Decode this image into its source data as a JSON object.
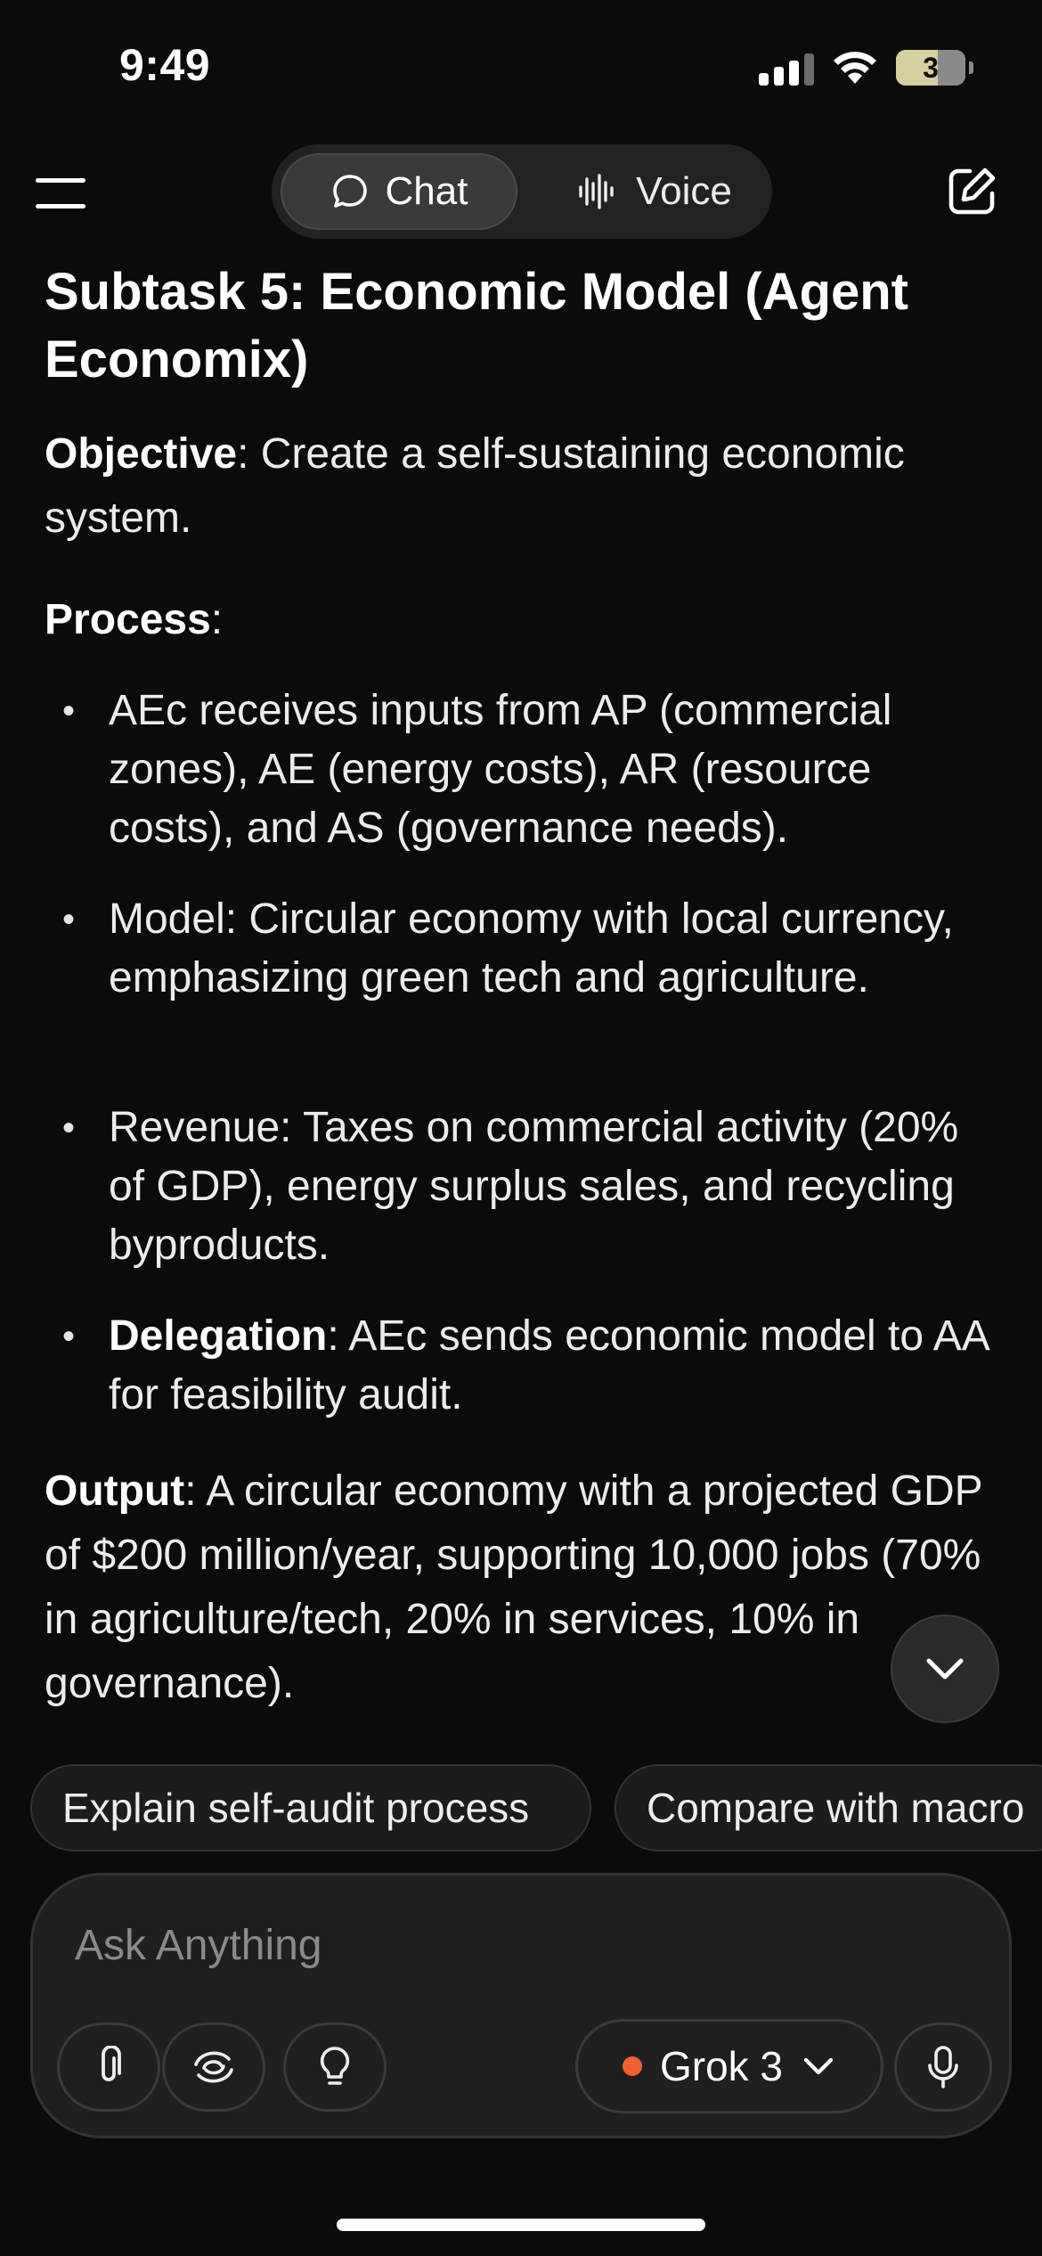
{
  "status_bar": {
    "time": "9:49",
    "battery_level": "3"
  },
  "nav": {
    "chat_label": "Chat",
    "voice_label": "Voice",
    "active_mode": "Chat"
  },
  "content": {
    "heading": "Subtask 5: Economic Model (Agent Economix)",
    "objective_label": "Objective",
    "objective_text": ": Create a self-sustaining economic system.",
    "process_label": "Process",
    "process_colon": ":",
    "bullets": [
      {
        "bold": "",
        "text": "AEc receives inputs from AP (commercial zones), AE (energy costs), AR (resource costs), and AS (governance needs)."
      },
      {
        "bold": "",
        "text": "Model: Circular economy with local currency, emphasizing green tech and agriculture."
      },
      {
        "bold": "",
        "text": "Revenue: Taxes on commercial activity (20% of GDP), energy surplus sales, and recycling byproducts."
      },
      {
        "bold": "Delegation",
        "text": ": AEc sends economic model to AA for feasibility audit."
      }
    ],
    "output_label": "Output",
    "output_text": ": A circular economy with a projected GDP of $200 million/year, supporting 10,000 jobs (70% in agriculture/tech, 20% in services, 10% in governance)."
  },
  "suggestions": [
    "Explain self-audit process",
    "Compare with macro"
  ],
  "composer": {
    "placeholder": "Ask Anything",
    "model_label": "Grok 3",
    "model_dot_color": "#f0612d"
  }
}
